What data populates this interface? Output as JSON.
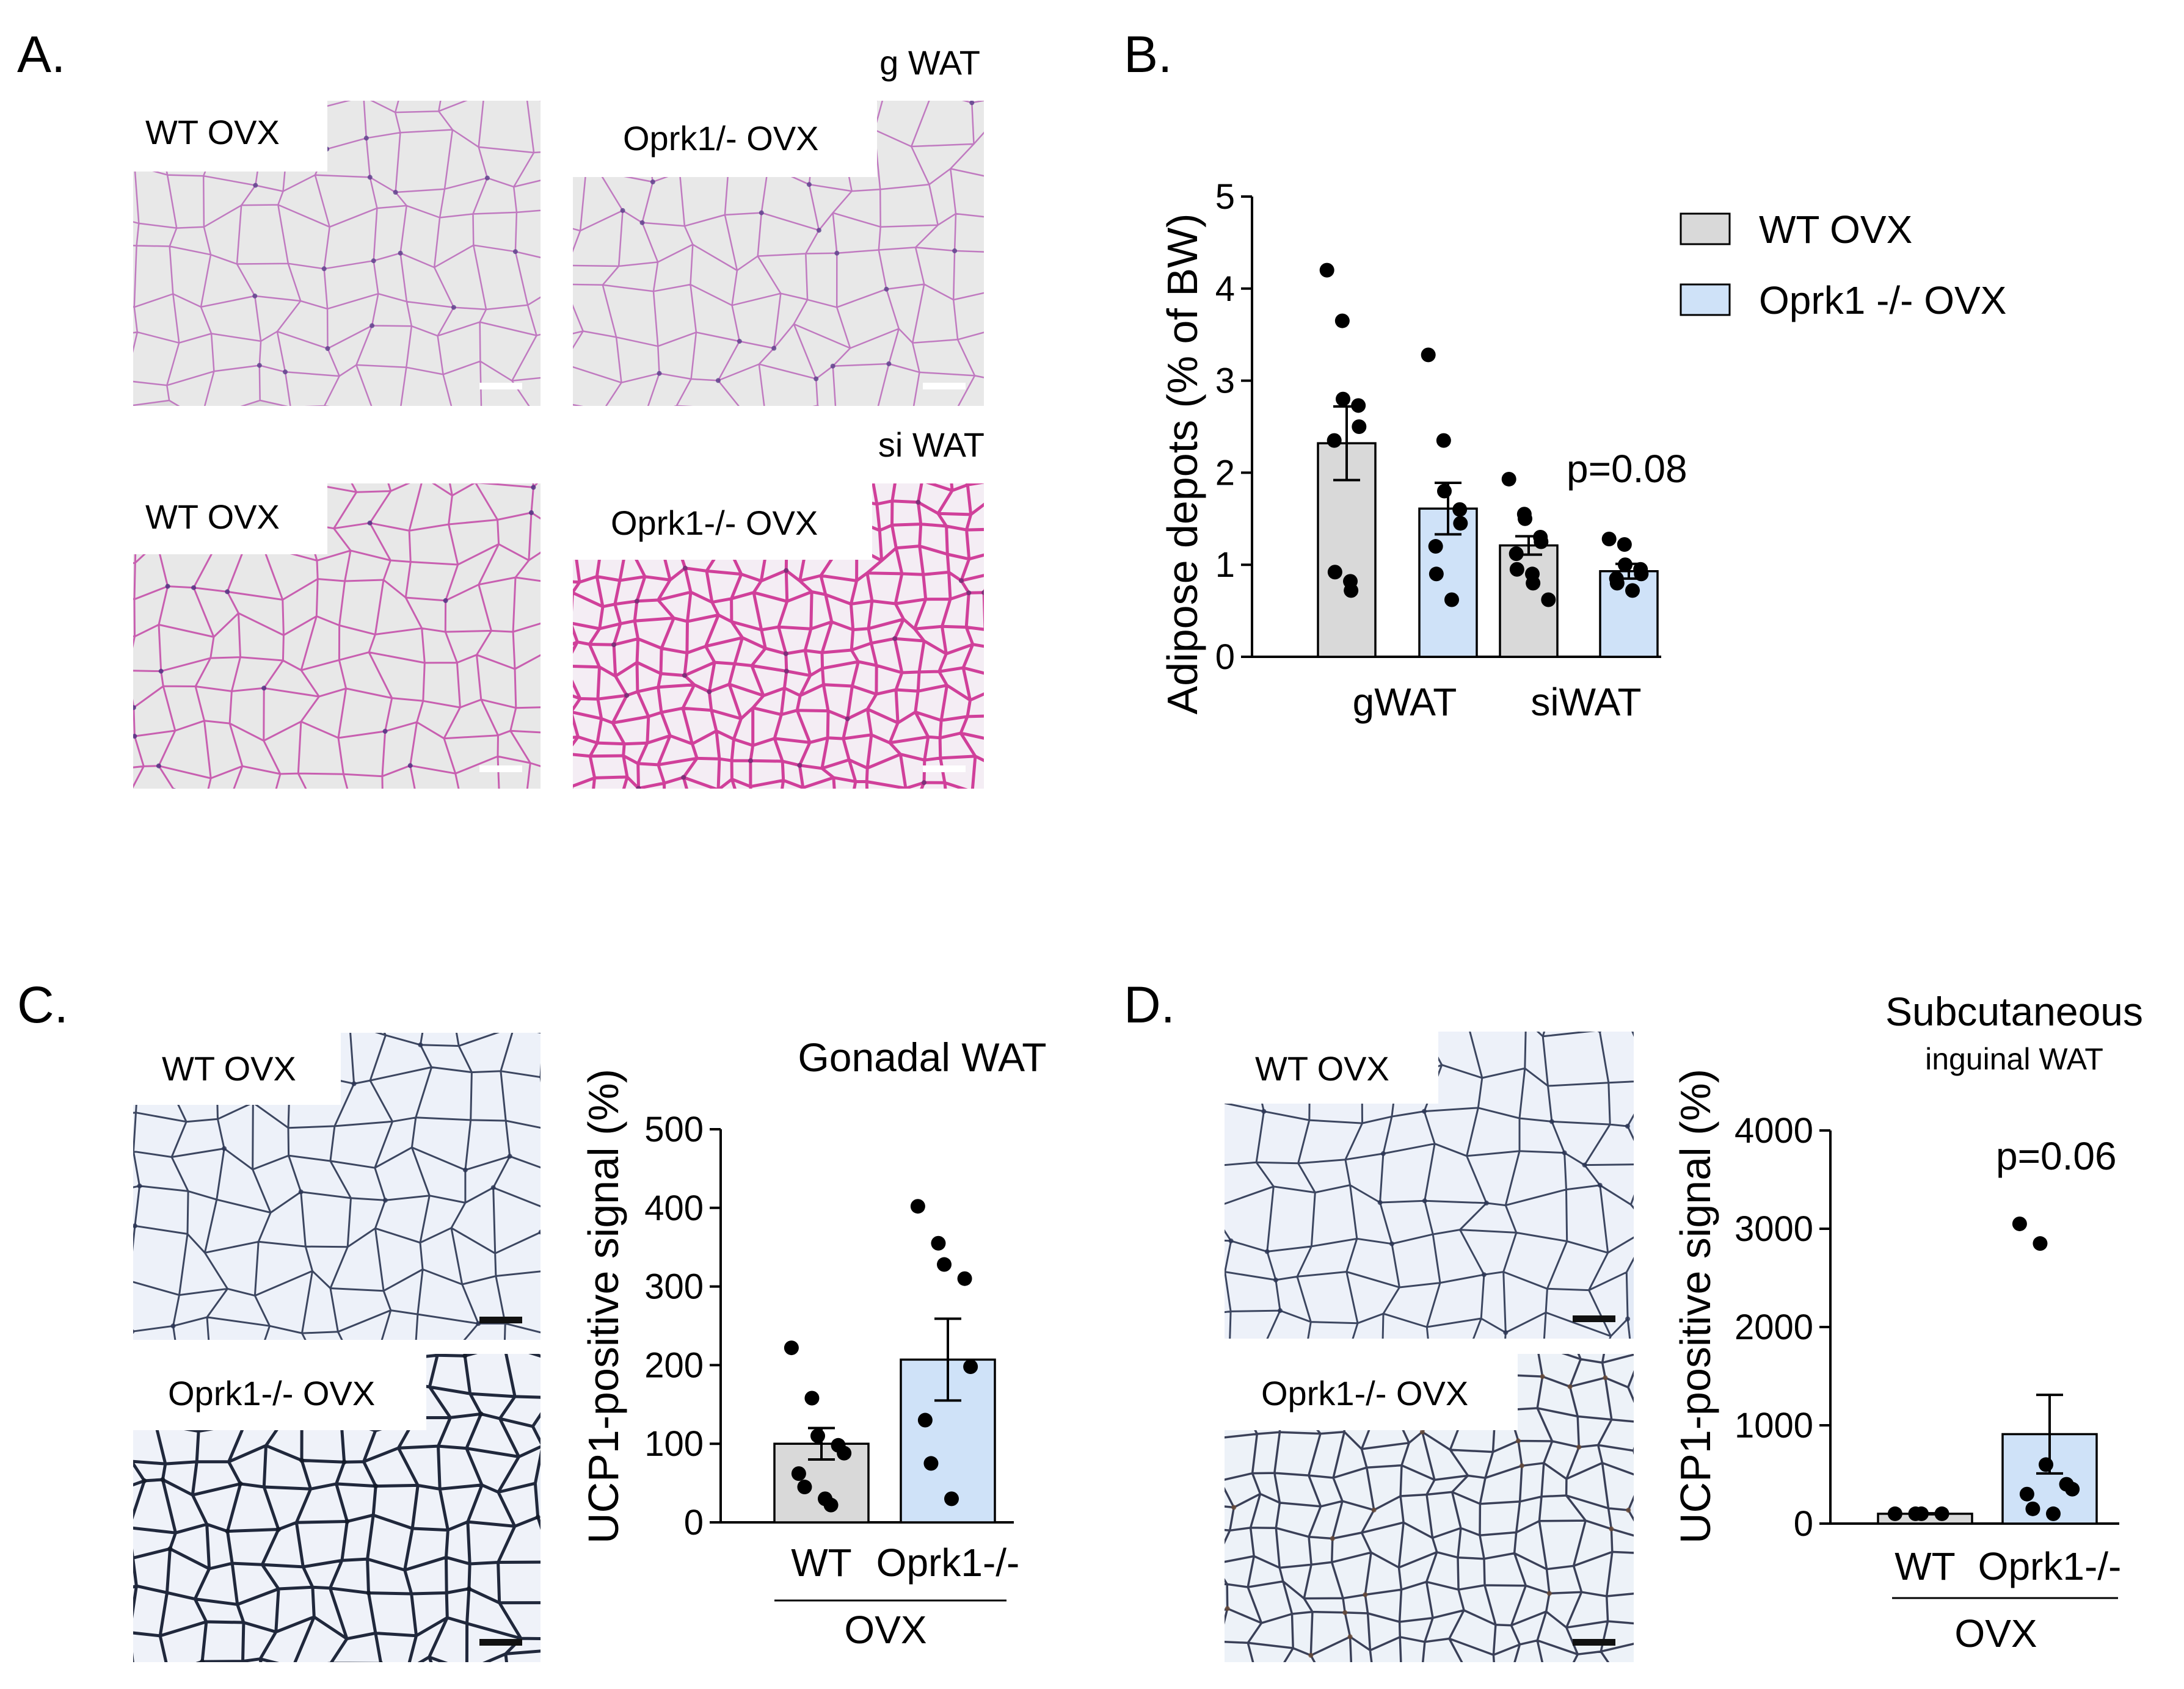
{
  "panels": {
    "A": {
      "letter": "A.",
      "section_labels": [
        "g WAT",
        "si WAT"
      ],
      "images": [
        {
          "label": "WT OVX",
          "stain": "he-light"
        },
        {
          "label": "Oprk1/- OVX",
          "stain": "he-light"
        },
        {
          "label": "WT OVX",
          "stain": "he-pink"
        },
        {
          "label": "Oprk1-/- OVX",
          "stain": "he-dense"
        }
      ]
    },
    "B": {
      "letter": "B."
    },
    "C": {
      "letter": "C.",
      "images": [
        {
          "label": "WT OVX",
          "stain": "ucp1-light"
        },
        {
          "label": "Oprk1-/- OVX",
          "stain": "ucp1-dark"
        }
      ]
    },
    "D": {
      "letter": "D.",
      "images": [
        {
          "label": "WT OVX",
          "stain": "ucp1-light"
        },
        {
          "label": "Oprk1-/- OVX",
          "stain": "ucp1-brown"
        }
      ]
    }
  },
  "colors": {
    "wt_fill": "#d9d9d9",
    "ko_fill": "#cfe2f8",
    "dot": "#000000",
    "he_bg": "#dcdcdc",
    "he_line": "#c07ac0",
    "ucp_bg": "#e3eaf6",
    "ucp_line": "#3c4660"
  },
  "chart_data": [
    {
      "id": "B",
      "type": "bar",
      "ylabel": "Adipose depots (% of BW)",
      "ylim": [
        0,
        5
      ],
      "yticks": [
        0,
        1,
        2,
        3,
        4,
        5
      ],
      "categories": [
        "gWAT",
        "siWAT"
      ],
      "legend": {
        "placement": "top-right",
        "entries": [
          "WT OVX",
          "Oprk1 -/- OVX"
        ]
      },
      "series": [
        {
          "name": "WT OVX",
          "values": [
            2.32,
            1.21
          ],
          "sem": [
            0.4,
            0.1
          ],
          "points": [
            [
              4.2,
              3.65,
              2.8,
              2.73,
              2.5,
              2.35,
              0.92,
              0.82,
              0.72
            ],
            [
              1.93,
              1.55,
              1.5,
              1.3,
              1.25,
              1.12,
              0.95,
              0.9,
              0.8,
              0.62
            ]
          ]
        },
        {
          "name": "Oprk1 -/- OVX",
          "values": [
            1.61,
            0.93
          ],
          "sem": [
            0.28,
            0.08
          ],
          "points": [
            [
              3.28,
              2.35,
              1.8,
              1.6,
              1.45,
              1.2,
              0.9,
              0.62
            ],
            [
              1.28,
              1.22,
              1.0,
              0.95,
              0.9,
              0.85,
              0.8,
              0.72
            ]
          ]
        }
      ],
      "annotations": [
        "p=0.08"
      ]
    },
    {
      "id": "C",
      "type": "bar",
      "title": "Gonadal WAT",
      "ylabel": "UCP1-positive signal (%)",
      "ylim": [
        0,
        500
      ],
      "yticks": [
        0,
        100,
        200,
        300,
        400,
        500
      ],
      "categories": [
        "WT",
        "Oprk1-/-"
      ],
      "group_label": "OVX",
      "colors": [
        "#d9d9d9",
        "#cfe2f8"
      ],
      "values": [
        100,
        207
      ],
      "sem": [
        20,
        52
      ],
      "points": [
        [
          222,
          158,
          110,
          98,
          88,
          62,
          45,
          30,
          22
        ],
        [
          402,
          355,
          328,
          310,
          198,
          130,
          75,
          30
        ]
      ]
    },
    {
      "id": "D",
      "type": "bar",
      "title": "Subcutaneous",
      "subtitle": "inguinal WAT",
      "ylabel": "UCP1-positive signal (%)",
      "ylim": [
        0,
        4000
      ],
      "yticks": [
        0,
        1000,
        2000,
        3000,
        4000
      ],
      "categories": [
        "WT",
        "Oprk1-/-"
      ],
      "group_label": "OVX",
      "colors": [
        "#d9d9d9",
        "#cfe2f8"
      ],
      "values": [
        100,
        910
      ],
      "sem": [
        5,
        400
      ],
      "points": [
        [
          100,
          100,
          100,
          100
        ],
        [
          3050,
          2850,
          600,
          400,
          350,
          300,
          150,
          100
        ]
      ],
      "annotations": [
        "p=0.06"
      ]
    }
  ]
}
